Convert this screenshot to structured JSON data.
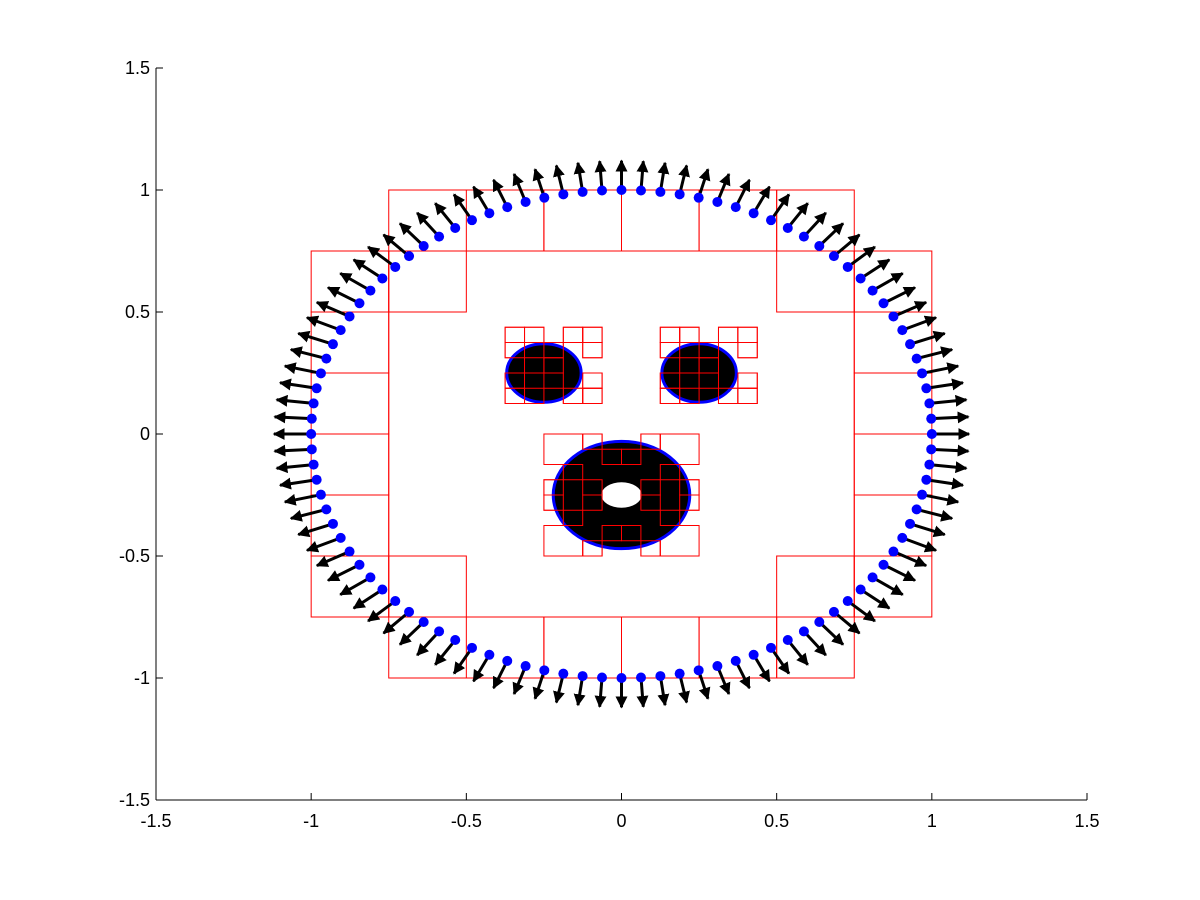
{
  "chart_data": {
    "type": "scatter",
    "title": "",
    "xlabel": "",
    "ylabel": "",
    "xlim": [
      -1.5,
      1.5
    ],
    "ylim": [
      -1.5,
      1.5
    ],
    "grid": false,
    "xticks": [
      {
        "value": -1.5,
        "label": "-1.5"
      },
      {
        "value": -1,
        "label": "-1"
      },
      {
        "value": -0.5,
        "label": "-0.5"
      },
      {
        "value": 0,
        "label": "0"
      },
      {
        "value": 0.5,
        "label": "0.5"
      },
      {
        "value": 1,
        "label": "1"
      },
      {
        "value": 1.5,
        "label": "1.5"
      }
    ],
    "yticks": [
      {
        "value": -1.5,
        "label": "-1.5"
      },
      {
        "value": -1,
        "label": "-1"
      },
      {
        "value": -0.5,
        "label": "-0.5"
      },
      {
        "value": 0,
        "label": "0"
      },
      {
        "value": 0.5,
        "label": "0.5"
      },
      {
        "value": 1,
        "label": "1"
      },
      {
        "value": 1.5,
        "label": "1.5"
      }
    ],
    "outer_boundary": {
      "center": [
        0,
        0
      ],
      "radius": 1,
      "point_count": 100,
      "normal_arrow_length": 0.12,
      "point_color": "#0000ff",
      "arrow_color": "#000000"
    },
    "holes": [
      {
        "center": [
          -0.25,
          0.25
        ],
        "radius": 0.12,
        "fill_color": "#000000",
        "edge_color": "#0000ff"
      },
      {
        "center": [
          0.25,
          0.25
        ],
        "radius": 0.12,
        "fill_color": "#000000",
        "edge_color": "#0000ff"
      },
      {
        "center": [
          0,
          -0.25
        ],
        "radius": 0.22,
        "inner_radius": 0.065,
        "fill_color": "#000000",
        "edge_color": "#0000ff"
      }
    ],
    "quadtree_cell_color": "#ff0000",
    "quadtree_cells": [
      [
        -0.75,
        0.75,
        0.5,
        0.25
      ],
      [
        -0.5,
        0.75,
        0.25,
        0.25
      ],
      [
        -0.25,
        0.75,
        0.25,
        0.25
      ],
      [
        0,
        0.75,
        0.25,
        0.25
      ],
      [
        0.25,
        0.75,
        0.25,
        0.25
      ],
      [
        0.5,
        0.75,
        0.25,
        0.25
      ],
      [
        -0.75,
        -1,
        0.5,
        0.25
      ],
      [
        -0.5,
        -1,
        0.25,
        0.25
      ],
      [
        -0.25,
        -1,
        0.25,
        0.25
      ],
      [
        0,
        -1,
        0.25,
        0.25
      ],
      [
        0.25,
        -1,
        0.25,
        0.25
      ],
      [
        0.5,
        -1,
        0.25,
        0.25
      ],
      [
        -1,
        0.5,
        0.25,
        0.25
      ],
      [
        -0.75,
        0.5,
        0.25,
        0.25
      ],
      [
        0.5,
        0.5,
        0.25,
        0.25
      ],
      [
        0.75,
        0.5,
        0.25,
        0.25
      ],
      [
        -1,
        -0.75,
        0.25,
        0.25
      ],
      [
        -0.75,
        -0.75,
        0.25,
        0.25
      ],
      [
        0.5,
        -0.75,
        0.25,
        0.25
      ],
      [
        0.75,
        -0.75,
        0.25,
        0.25
      ],
      [
        -1,
        0.25,
        0.25,
        0.25
      ],
      [
        -1,
        0,
        0.25,
        0.25
      ],
      [
        -1,
        -0.25,
        0.25,
        0.25
      ],
      [
        -1,
        -0.5,
        0.25,
        0.25
      ],
      [
        0.75,
        0.25,
        0.25,
        0.25
      ],
      [
        0.75,
        0,
        0.25,
        0.25
      ],
      [
        0.75,
        -0.25,
        0.25,
        0.25
      ],
      [
        0.75,
        -0.5,
        0.25,
        0.25
      ],
      [
        -0.75,
        -0.75,
        1.5,
        1.5
      ],
      [
        -0.375,
        0.375,
        0.0625,
        0.0625
      ],
      [
        -0.3125,
        0.375,
        0.0625,
        0.0625
      ],
      [
        -0.1875,
        0.375,
        0.0625,
        0.0625
      ],
      [
        -0.125,
        0.375,
        0.0625,
        0.0625
      ],
      [
        -0.375,
        0.3125,
        0.0625,
        0.0625
      ],
      [
        -0.375,
        0.1875,
        0.0625,
        0.0625
      ],
      [
        -0.375,
        0.125,
        0.0625,
        0.0625
      ],
      [
        -0.3125,
        0.125,
        0.0625,
        0.0625
      ],
      [
        -0.1875,
        0.125,
        0.0625,
        0.0625
      ],
      [
        -0.125,
        0.125,
        0.0625,
        0.0625
      ],
      [
        -0.125,
        0.3125,
        0.0625,
        0.0625
      ],
      [
        -0.125,
        0.1875,
        0.0625,
        0.0625
      ],
      [
        -0.25,
        0.25,
        0.0625,
        0.0625
      ],
      [
        -0.3125,
        0.25,
        0.0625,
        0.0625
      ],
      [
        -0.25,
        0.1875,
        0.0625,
        0.0625
      ],
      [
        -0.25,
        0.3125,
        0.0625,
        0.0625
      ],
      [
        0.125,
        0.375,
        0.0625,
        0.0625
      ],
      [
        0.1875,
        0.375,
        0.0625,
        0.0625
      ],
      [
        0.3125,
        0.375,
        0.0625,
        0.0625
      ],
      [
        0.375,
        0.375,
        0.0625,
        0.0625
      ],
      [
        0.125,
        0.3125,
        0.0625,
        0.0625
      ],
      [
        0.125,
        0.1875,
        0.0625,
        0.0625
      ],
      [
        0.125,
        0.125,
        0.0625,
        0.0625
      ],
      [
        0.1875,
        0.125,
        0.0625,
        0.0625
      ],
      [
        0.3125,
        0.125,
        0.0625,
        0.0625
      ],
      [
        0.375,
        0.125,
        0.0625,
        0.0625
      ],
      [
        0.375,
        0.3125,
        0.0625,
        0.0625
      ],
      [
        0.375,
        0.1875,
        0.0625,
        0.0625
      ],
      [
        0.25,
        0.25,
        0.0625,
        0.0625
      ],
      [
        0.1875,
        0.25,
        0.0625,
        0.0625
      ],
      [
        0.25,
        0.1875,
        0.0625,
        0.0625
      ],
      [
        0.25,
        0.3125,
        0.0625,
        0.0625
      ],
      [
        -0.25,
        -0.125,
        0.125,
        0.125
      ],
      [
        0.125,
        -0.125,
        0.125,
        0.125
      ],
      [
        -0.25,
        -0.5,
        0.125,
        0.125
      ],
      [
        0.125,
        -0.5,
        0.125,
        0.125
      ],
      [
        -0.125,
        -0.0625,
        0.0625,
        0.0625
      ],
      [
        0.0625,
        -0.0625,
        0.0625,
        0.0625
      ],
      [
        -0.125,
        -0.5,
        0.0625,
        0.0625
      ],
      [
        0.0625,
        -0.5,
        0.0625,
        0.0625
      ],
      [
        -0.25,
        -0.25,
        0.0625,
        0.0625
      ],
      [
        -0.25,
        -0.3125,
        0.0625,
        0.0625
      ],
      [
        0.1875,
        -0.25,
        0.0625,
        0.0625
      ],
      [
        0.1875,
        -0.3125,
        0.0625,
        0.0625
      ],
      [
        -0.1875,
        -0.1875,
        0.0625,
        0.0625
      ],
      [
        0.125,
        -0.1875,
        0.0625,
        0.0625
      ],
      [
        -0.1875,
        -0.375,
        0.0625,
        0.0625
      ],
      [
        0.125,
        -0.375,
        0.0625,
        0.0625
      ],
      [
        -0.0625,
        -0.125,
        0.0625,
        0.0625
      ],
      [
        0,
        -0.125,
        0.0625,
        0.0625
      ],
      [
        -0.0625,
        -0.4375,
        0.0625,
        0.0625
      ],
      [
        0,
        -0.4375,
        0.0625,
        0.0625
      ],
      [
        -0.125,
        -0.3125,
        0.0625,
        0.0625
      ],
      [
        0.0625,
        -0.3125,
        0.0625,
        0.0625
      ],
      [
        -0.125,
        -0.25,
        0.0625,
        0.0625
      ],
      [
        0.0625,
        -0.25,
        0.0625,
        0.0625
      ]
    ]
  }
}
